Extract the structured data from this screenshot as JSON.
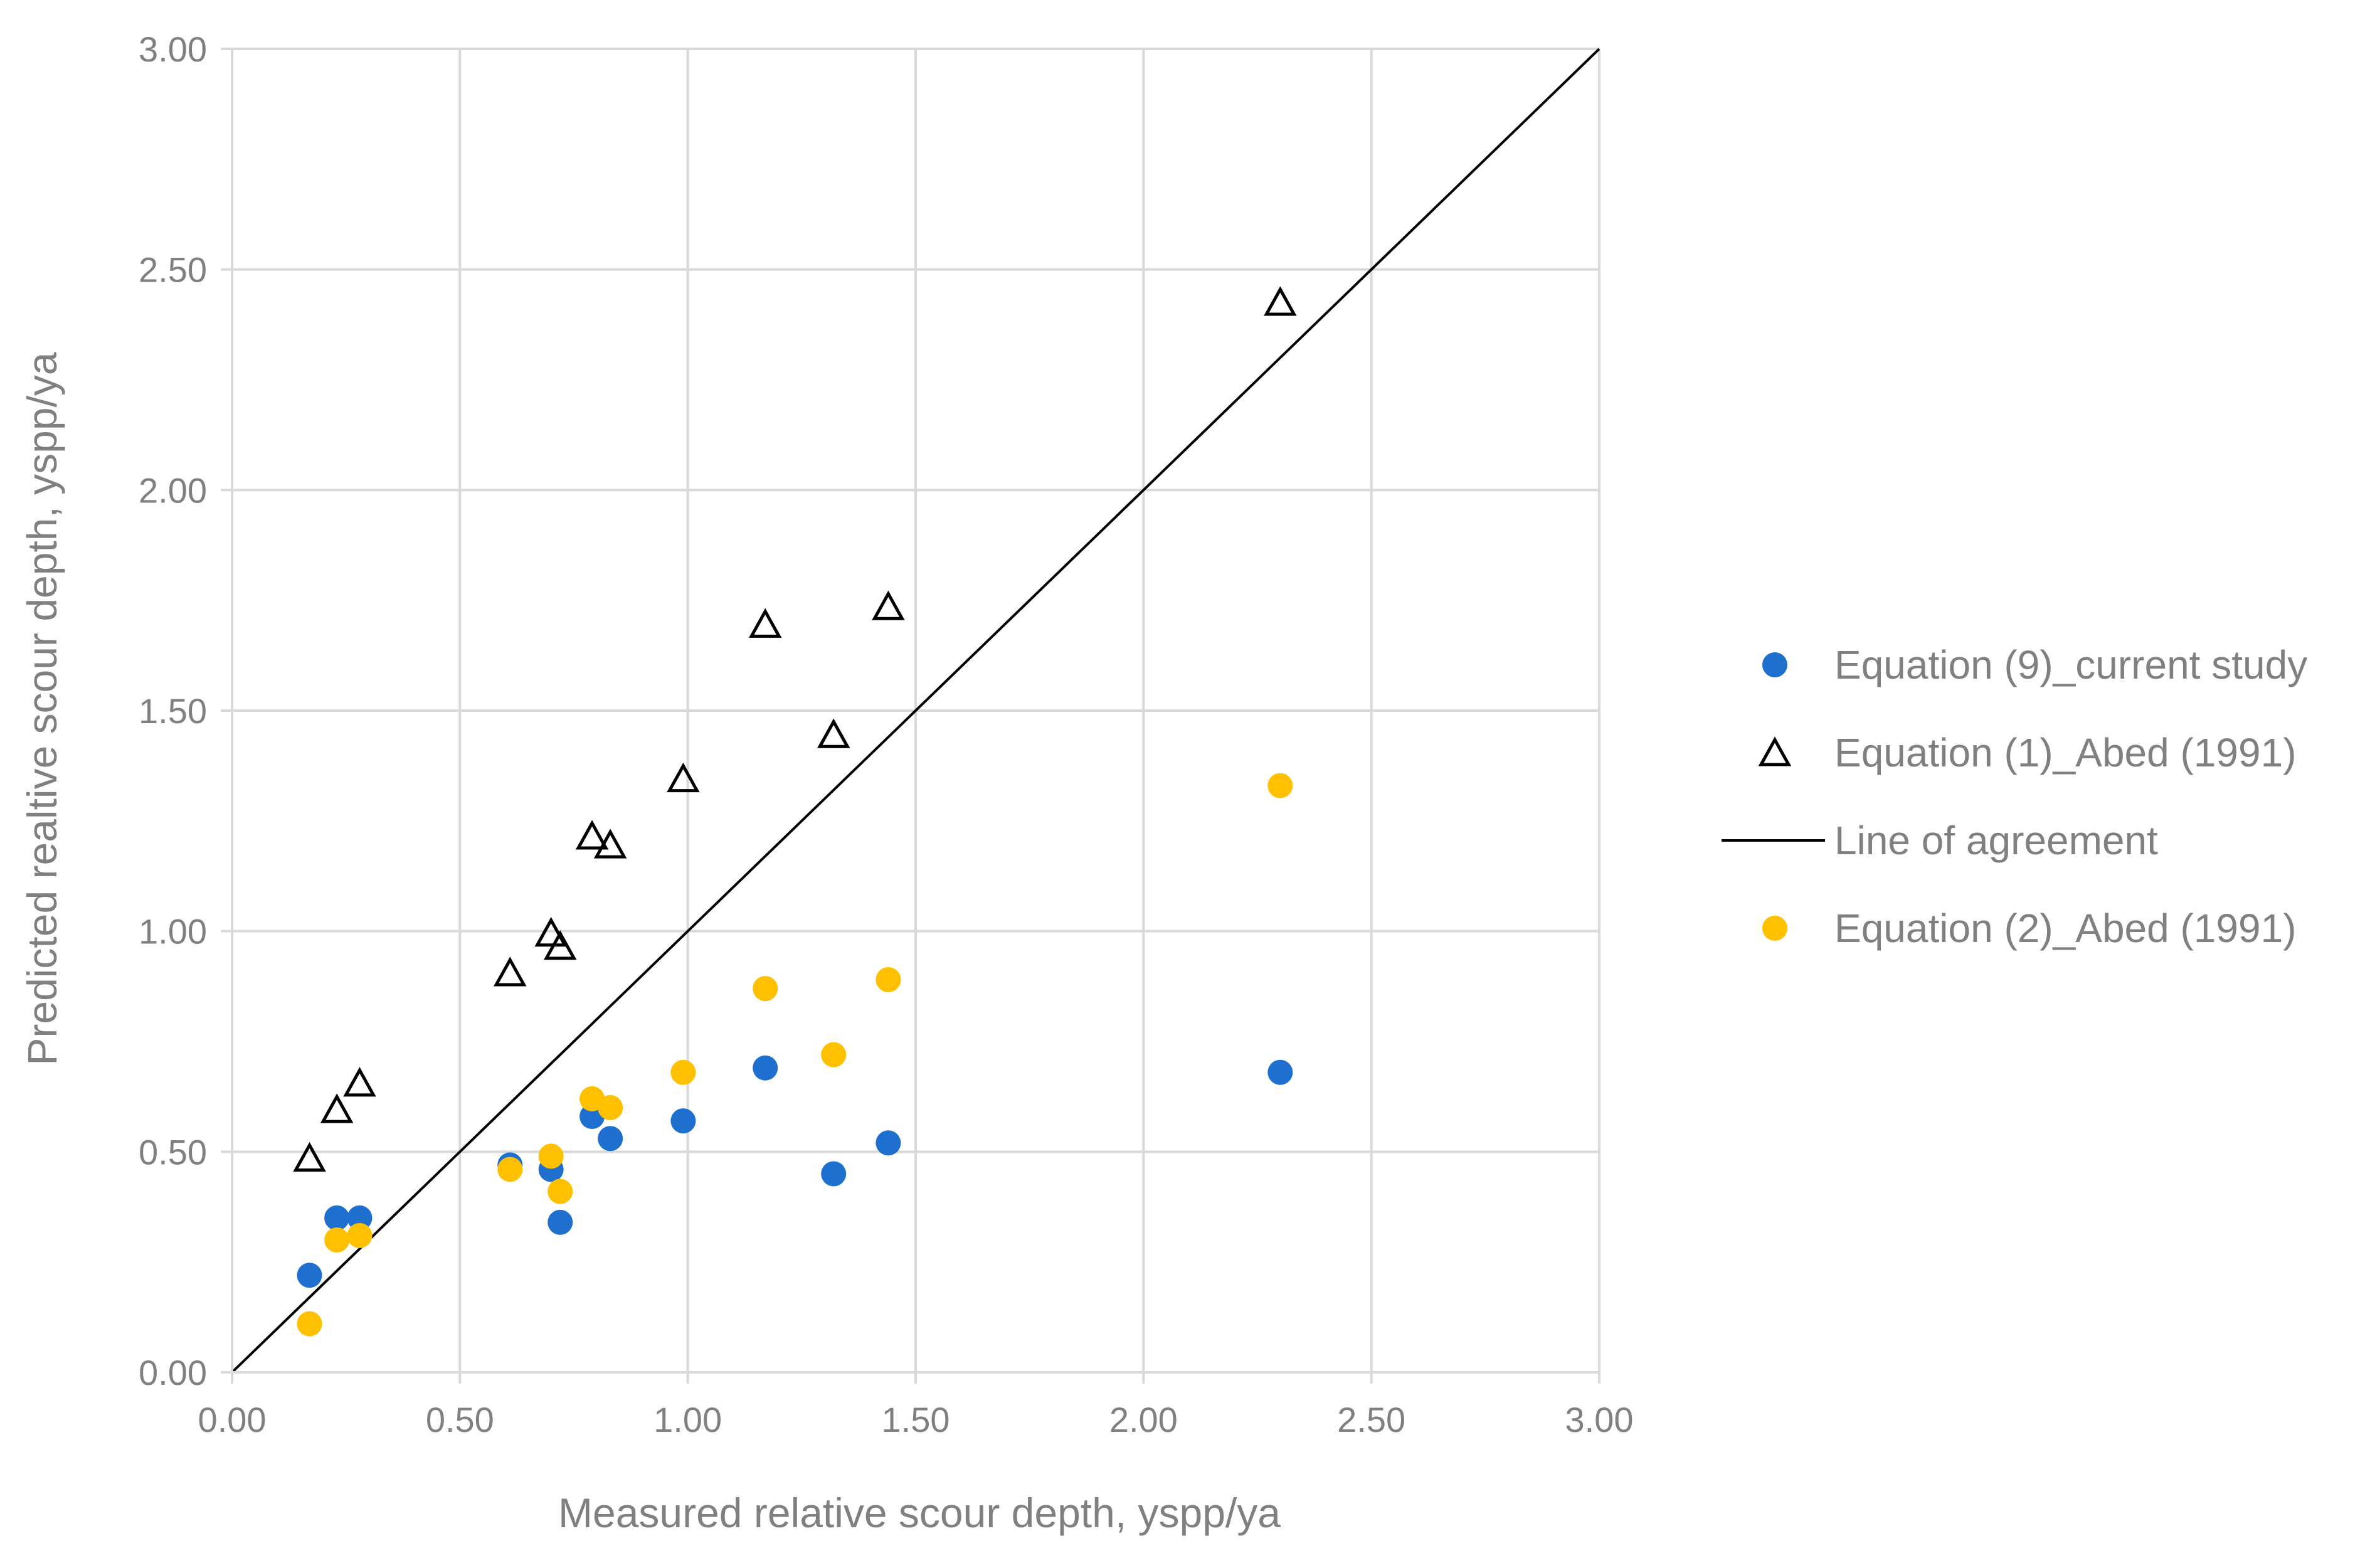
{
  "chart_data": {
    "type": "scatter",
    "title": "",
    "xlabel": "Measured relative scour depth, yspp/ya",
    "ylabel": "Predicted realtive scour depth, yspp/ya",
    "xlim": [
      0,
      3
    ],
    "ylim": [
      0,
      3
    ],
    "grid": true,
    "legend_position": "right",
    "x_ticks": [
      "0.00",
      "0.50",
      "1.00",
      "1.50",
      "2.00",
      "2.50",
      "3.00"
    ],
    "y_ticks": [
      "0.00",
      "0.50",
      "1.00",
      "1.50",
      "2.00",
      "2.50",
      "3.00"
    ],
    "series": [
      {
        "name": "Equation (9)_current study",
        "marker": "circle",
        "color": "#1f6fcf",
        "points": [
          [
            0.17,
            0.22
          ],
          [
            0.23,
            0.35
          ],
          [
            0.28,
            0.35
          ],
          [
            0.61,
            0.47
          ],
          [
            0.7,
            0.46
          ],
          [
            0.72,
            0.34
          ],
          [
            0.79,
            0.58
          ],
          [
            0.83,
            0.53
          ],
          [
            0.99,
            0.57
          ],
          [
            1.17,
            0.69
          ],
          [
            1.32,
            0.45
          ],
          [
            1.44,
            0.52
          ],
          [
            2.3,
            0.68
          ]
        ]
      },
      {
        "name": "Equation (1)_Abed (1991)",
        "marker": "triangle-open",
        "color": "#000000",
        "points": [
          [
            0.17,
            0.48
          ],
          [
            0.23,
            0.59
          ],
          [
            0.28,
            0.65
          ],
          [
            0.61,
            0.9
          ],
          [
            0.7,
            0.99
          ],
          [
            0.72,
            0.96
          ],
          [
            0.79,
            1.21
          ],
          [
            0.83,
            1.19
          ],
          [
            0.99,
            1.34
          ],
          [
            1.17,
            1.69
          ],
          [
            1.32,
            1.44
          ],
          [
            1.44,
            1.73
          ],
          [
            2.3,
            2.42
          ]
        ]
      },
      {
        "name": "Line of agreement",
        "marker": "line",
        "color": "#000000",
        "points": [
          [
            0,
            0
          ],
          [
            3,
            3
          ]
        ]
      },
      {
        "name": "Equation (2)_Abed (1991)",
        "marker": "circle",
        "color": "#ffc000",
        "points": [
          [
            0.17,
            0.11
          ],
          [
            0.23,
            0.3
          ],
          [
            0.28,
            0.31
          ],
          [
            0.61,
            0.46
          ],
          [
            0.7,
            0.49
          ],
          [
            0.72,
            0.41
          ],
          [
            0.79,
            0.62
          ],
          [
            0.83,
            0.6
          ],
          [
            0.99,
            0.68
          ],
          [
            1.17,
            0.87
          ],
          [
            1.32,
            0.72
          ],
          [
            1.44,
            0.89
          ],
          [
            2.3,
            1.33
          ]
        ]
      }
    ]
  }
}
